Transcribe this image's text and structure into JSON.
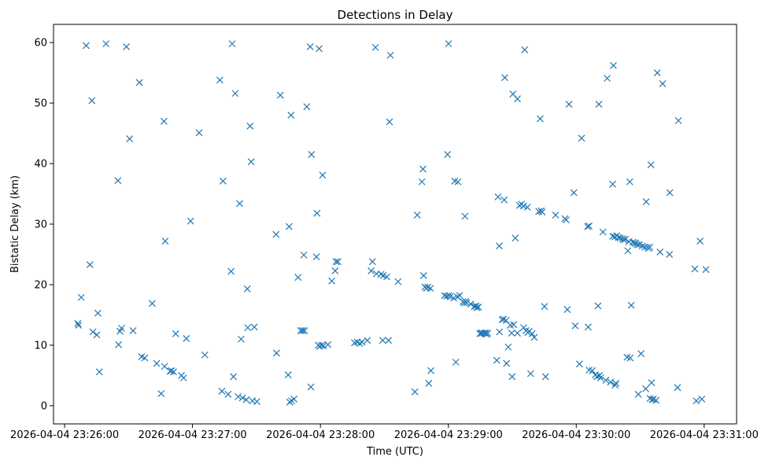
{
  "chart_data": {
    "type": "scatter",
    "title": "Detections in Delay",
    "xlabel": "Time (UTC)",
    "ylabel": "Bistatic Delay (km)",
    "marker": "x",
    "color": "#1f77b4",
    "xlim": [
      -5.2,
      315.2
    ],
    "ylim": [
      -3.0,
      63.0
    ],
    "xticks": [
      {
        "value": 0,
        "label": "2026-04-04 23:26:00"
      },
      {
        "value": 60,
        "label": "2026-04-04 23:27:00"
      },
      {
        "value": 120,
        "label": "2026-04-04 23:28:00"
      },
      {
        "value": 180,
        "label": "2026-04-04 23:29:00"
      },
      {
        "value": 240,
        "label": "2026-04-04 23:30:00"
      },
      {
        "value": 300,
        "label": "2026-04-04 23:31:00"
      }
    ],
    "yticks": [
      {
        "value": 0,
        "label": "0"
      },
      {
        "value": 10,
        "label": "10"
      },
      {
        "value": 20,
        "label": "20"
      },
      {
        "value": 30,
        "label": "30"
      },
      {
        "value": 40,
        "label": "40"
      },
      {
        "value": 50,
        "label": "50"
      },
      {
        "value": 60,
        "label": "60"
      }
    ],
    "points": [
      [
        6.2,
        13.6
      ],
      [
        6.5,
        13.3
      ],
      [
        7.8,
        17.9
      ],
      [
        10.1,
        59.5
      ],
      [
        11.9,
        23.3
      ],
      [
        12.8,
        50.4
      ],
      [
        13.3,
        12.2
      ],
      [
        15.1,
        11.7
      ],
      [
        15.6,
        15.3
      ],
      [
        16.3,
        5.6
      ],
      [
        19.4,
        59.8
      ],
      [
        25.0,
        37.2
      ],
      [
        25.3,
        10.1
      ],
      [
        26.0,
        12.3
      ],
      [
        26.7,
        12.8
      ],
      [
        29.0,
        59.3
      ],
      [
        30.5,
        44.1
      ],
      [
        32.1,
        12.4
      ],
      [
        35.1,
        53.4
      ],
      [
        36.1,
        8.1
      ],
      [
        37.6,
        7.9
      ],
      [
        41.1,
        16.9
      ],
      [
        43.2,
        7.0
      ],
      [
        45.3,
        2.0
      ],
      [
        46.6,
        47.0
      ],
      [
        46.9,
        6.5
      ],
      [
        47.2,
        27.2
      ],
      [
        49.5,
        5.7
      ],
      [
        50.1,
        5.8
      ],
      [
        51.1,
        5.6
      ],
      [
        52.1,
        11.9
      ],
      [
        54.8,
        5.0
      ],
      [
        55.8,
        4.6
      ],
      [
        57.1,
        11.1
      ],
      [
        59.1,
        30.5
      ],
      [
        63.1,
        45.1
      ],
      [
        65.8,
        8.4
      ],
      [
        72.8,
        53.8
      ],
      [
        73.8,
        2.4
      ],
      [
        74.3,
        37.1
      ],
      [
        76.7,
        1.9
      ],
      [
        78.1,
        22.2
      ],
      [
        78.6,
        59.8
      ],
      [
        79.2,
        4.8
      ],
      [
        80.0,
        51.6
      ],
      [
        81.4,
        1.5
      ],
      [
        82.1,
        33.4
      ],
      [
        82.8,
        11.0
      ],
      [
        83.4,
        1.3
      ],
      [
        85.2,
        1.0
      ],
      [
        85.7,
        19.3
      ],
      [
        85.9,
        12.9
      ],
      [
        87.0,
        46.2
      ],
      [
        87.5,
        40.3
      ],
      [
        88.1,
        0.8
      ],
      [
        89.0,
        13.0
      ],
      [
        90.2,
        0.7
      ],
      [
        99.2,
        28.3
      ],
      [
        99.4,
        8.7
      ],
      [
        101.2,
        51.3
      ],
      [
        104.9,
        5.1
      ],
      [
        105.3,
        29.6
      ],
      [
        105.6,
        0.6
      ],
      [
        106.2,
        48.0
      ],
      [
        106.5,
        0.8
      ],
      [
        107.6,
        1.1
      ],
      [
        109.5,
        21.2
      ],
      [
        110.8,
        12.4
      ],
      [
        111.6,
        12.4
      ],
      [
        112.2,
        24.9
      ],
      [
        112.5,
        12.4
      ],
      [
        113.6,
        49.4
      ],
      [
        115.2,
        59.3
      ],
      [
        115.5,
        3.1
      ],
      [
        115.8,
        41.5
      ],
      [
        118.1,
        24.6
      ],
      [
        118.4,
        31.8
      ],
      [
        119.0,
        10.0
      ],
      [
        119.4,
        59.0
      ],
      [
        119.7,
        9.8
      ],
      [
        120.5,
        10.0
      ],
      [
        121.0,
        38.1
      ],
      [
        121.4,
        9.9
      ],
      [
        123.5,
        10.1
      ],
      [
        125.3,
        20.6
      ],
      [
        126.9,
        22.3
      ],
      [
        127.3,
        23.8
      ],
      [
        128.2,
        23.8
      ],
      [
        136.0,
        10.4
      ],
      [
        137.3,
        10.5
      ],
      [
        138.5,
        10.3
      ],
      [
        139.5,
        10.5
      ],
      [
        142.0,
        10.8
      ],
      [
        143.8,
        22.3
      ],
      [
        144.4,
        23.8
      ],
      [
        145.8,
        59.2
      ],
      [
        146.3,
        21.8
      ],
      [
        148.4,
        21.7
      ],
      [
        149.2,
        10.8
      ],
      [
        149.5,
        21.5
      ],
      [
        151.1,
        21.3
      ],
      [
        151.9,
        10.8
      ],
      [
        152.4,
        46.9
      ],
      [
        152.8,
        57.9
      ],
      [
        156.4,
        20.5
      ],
      [
        164.3,
        2.3
      ],
      [
        165.4,
        31.5
      ],
      [
        167.6,
        37.0
      ],
      [
        168.1,
        39.1
      ],
      [
        168.4,
        21.5
      ],
      [
        169.0,
        19.6
      ],
      [
        169.8,
        19.4
      ],
      [
        170.4,
        19.6
      ],
      [
        170.8,
        3.7
      ],
      [
        171.6,
        19.4
      ],
      [
        171.8,
        5.8
      ],
      [
        178.2,
        18.2
      ],
      [
        179.2,
        18.1
      ],
      [
        179.6,
        41.5
      ],
      [
        180.1,
        59.8
      ],
      [
        180.3,
        18.2
      ],
      [
        180.9,
        18.0
      ],
      [
        182.5,
        17.8
      ],
      [
        183.0,
        37.1
      ],
      [
        183.5,
        7.2
      ],
      [
        184.2,
        18.0
      ],
      [
        184.5,
        37.0
      ],
      [
        185.3,
        18.2
      ],
      [
        186.9,
        17.2
      ],
      [
        187.4,
        17.0
      ],
      [
        187.8,
        31.3
      ],
      [
        188.1,
        17.2
      ],
      [
        188.6,
        17.0
      ],
      [
        190.5,
        16.8
      ],
      [
        192.2,
        16.4
      ],
      [
        193.0,
        16.5
      ],
      [
        193.4,
        16.2
      ],
      [
        194.1,
        16.3
      ],
      [
        194.8,
        11.9
      ],
      [
        195.3,
        12.0
      ],
      [
        195.9,
        12.0
      ],
      [
        196.9,
        12.0
      ],
      [
        197.5,
        12.0
      ],
      [
        198.0,
        11.8
      ],
      [
        198.4,
        12.0
      ],
      [
        202.7,
        7.5
      ],
      [
        203.3,
        34.5
      ],
      [
        203.9,
        26.4
      ],
      [
        204.0,
        12.2
      ],
      [
        205.2,
        14.2
      ],
      [
        205.9,
        14.3
      ],
      [
        206.2,
        34.0
      ],
      [
        206.5,
        54.2
      ],
      [
        207.1,
        14.1
      ],
      [
        207.3,
        7.0
      ],
      [
        208.1,
        9.7
      ],
      [
        209.1,
        13.3
      ],
      [
        209.7,
        12.0
      ],
      [
        209.9,
        4.8
      ],
      [
        210.3,
        51.5
      ],
      [
        210.6,
        13.4
      ],
      [
        211.4,
        27.7
      ],
      [
        212.4,
        12.0
      ],
      [
        212.4,
        50.7
      ],
      [
        213.4,
        33.1
      ],
      [
        214.3,
        33.3
      ],
      [
        215.3,
        33.0
      ],
      [
        215.3,
        12.9
      ],
      [
        215.8,
        58.8
      ],
      [
        216.4,
        12.4
      ],
      [
        217.1,
        32.8
      ],
      [
        217.3,
        12.1
      ],
      [
        217.9,
        12.3
      ],
      [
        218.6,
        5.3
      ],
      [
        219.3,
        11.9
      ],
      [
        220.3,
        11.3
      ],
      [
        222.4,
        32.1
      ],
      [
        223.1,
        47.4
      ],
      [
        223.5,
        32.2
      ],
      [
        224.0,
        32.0
      ],
      [
        225.1,
        16.4
      ],
      [
        225.6,
        4.8
      ],
      [
        230.3,
        31.5
      ],
      [
        234.7,
        30.9
      ],
      [
        235.3,
        30.7
      ],
      [
        235.8,
        15.9
      ],
      [
        236.6,
        49.8
      ],
      [
        238.9,
        35.2
      ],
      [
        239.5,
        13.2
      ],
      [
        241.5,
        6.9
      ],
      [
        242.5,
        44.2
      ],
      [
        245.3,
        29.6
      ],
      [
        245.6,
        13.0
      ],
      [
        246.0,
        29.7
      ],
      [
        246.0,
        5.9
      ],
      [
        247.5,
        5.8
      ],
      [
        249.0,
        5.1
      ],
      [
        249.7,
        4.8
      ],
      [
        250.2,
        16.5
      ],
      [
        250.6,
        49.8
      ],
      [
        250.9,
        5.0
      ],
      [
        251.4,
        4.6
      ],
      [
        252.5,
        28.7
      ],
      [
        253.9,
        4.2
      ],
      [
        254.5,
        54.1
      ],
      [
        256.1,
        3.9
      ],
      [
        257.1,
        36.6
      ],
      [
        257.1,
        28.0
      ],
      [
        257.4,
        56.2
      ],
      [
        258.1,
        27.9
      ],
      [
        258.2,
        3.4
      ],
      [
        258.6,
        3.7
      ],
      [
        259.0,
        28.1
      ],
      [
        259.8,
        27.8
      ],
      [
        260.6,
        27.7
      ],
      [
        261.7,
        27.6
      ],
      [
        262.2,
        27.4
      ],
      [
        263.0,
        27.5
      ],
      [
        263.8,
        8.0
      ],
      [
        264.2,
        25.6
      ],
      [
        264.7,
        27.1
      ],
      [
        265.1,
        37.0
      ],
      [
        265.3,
        7.9
      ],
      [
        265.8,
        16.6
      ],
      [
        266.5,
        27.0
      ],
      [
        267.4,
        26.9
      ],
      [
        268.0,
        26.8
      ],
      [
        268.6,
        26.6
      ],
      [
        269.1,
        1.9
      ],
      [
        269.6,
        26.6
      ],
      [
        270.4,
        8.6
      ],
      [
        271.0,
        26.4
      ],
      [
        272.1,
        26.2
      ],
      [
        272.6,
        2.8
      ],
      [
        272.8,
        33.7
      ],
      [
        273.3,
        26.2
      ],
      [
        273.9,
        26.0
      ],
      [
        274.5,
        26.2
      ],
      [
        274.6,
        1.2
      ],
      [
        275.0,
        39.8
      ],
      [
        275.3,
        3.8
      ],
      [
        275.6,
        1.0
      ],
      [
        276.2,
        1.1
      ],
      [
        277.4,
        0.9
      ],
      [
        278.0,
        55.0
      ],
      [
        279.3,
        25.4
      ],
      [
        280.5,
        53.2
      ],
      [
        283.7,
        25.0
      ],
      [
        283.9,
        35.2
      ],
      [
        287.5,
        3.0
      ],
      [
        287.9,
        47.1
      ],
      [
        295.6,
        22.6
      ],
      [
        296.3,
        0.8
      ],
      [
        298.1,
        27.2
      ],
      [
        298.9,
        1.1
      ],
      [
        300.8,
        22.5
      ]
    ]
  }
}
